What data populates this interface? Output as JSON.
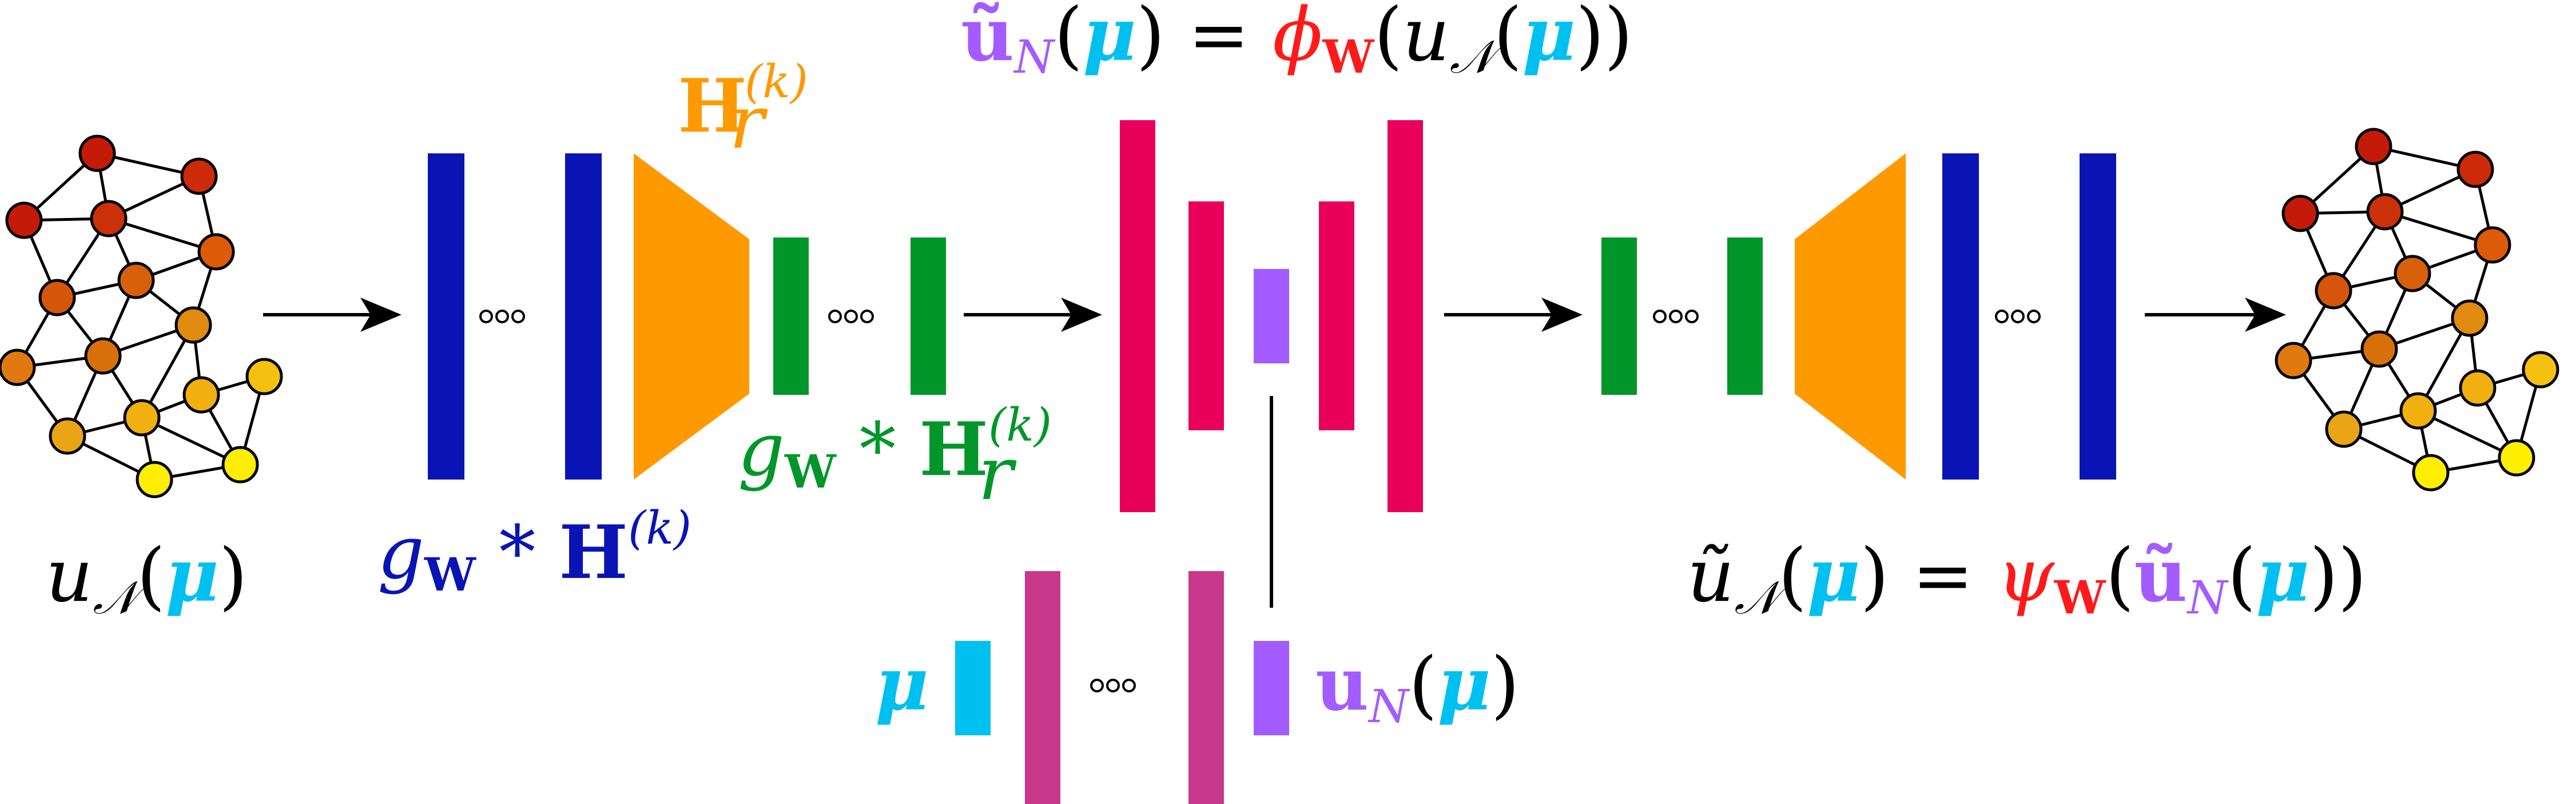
{
  "colors": {
    "blue": "#0a14b4",
    "orange": "#ff9900",
    "green": "#00962a",
    "crimson": "#e8005a",
    "violet": "#a35cff",
    "magenta": "#c8388a",
    "cyan": "#00c0f0",
    "red": "#ff1a1a",
    "black": "#000000"
  },
  "icons": {
    "left_mesh": "graph-mesh-icon",
    "right_mesh": "graph-mesh-icon",
    "ellipsis": "ellipsis-icon",
    "arrow": "right-arrow-icon"
  },
  "labels": {
    "input_field": {
      "u": "u",
      "sub": "𝒩",
      "open": "(",
      "mu": "μ",
      "close": ")"
    },
    "encoder_conv": {
      "g": "g",
      "w": "W",
      "star": " * ",
      "H": "H",
      "sup": "(k)"
    },
    "pooling": {
      "H": "H",
      "sub": "r",
      "sup": "(k)"
    },
    "reduced_conv": {
      "g": "g",
      "w": "W",
      "star": " * ",
      "H": "H",
      "sub": "r",
      "sup": "(k)"
    },
    "latent_eq": {
      "u": "ũ",
      "sub": "N",
      "open": "(",
      "mu": "μ",
      "close": ")",
      "eq": " = ",
      "phi": "ϕ",
      "w": "W",
      "open2": "(",
      "u2": "u",
      "sub2": "𝒩",
      "open3": "(",
      "mu2": "μ",
      "close3": "))"
    },
    "param_mu": {
      "mu": "μ"
    },
    "latent_un": {
      "u": "u",
      "sub": "N",
      "open": "(",
      "mu": "μ",
      "close": ")"
    },
    "output_eq": {
      "u": "ũ",
      "sub": "𝒩",
      "open": "(",
      "mu": "μ",
      "close": ")",
      "eq": " = ",
      "psi": "ψ",
      "w": "W",
      "open2": "(",
      "u2": "ũ",
      "sub2": "N",
      "open3": "(",
      "mu2": "μ",
      "close3": "))"
    }
  }
}
